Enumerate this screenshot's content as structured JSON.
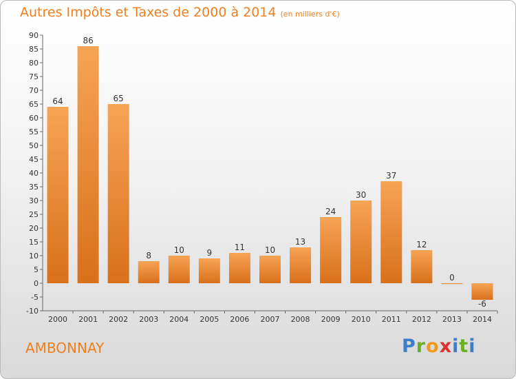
{
  "chart_data": {
    "type": "bar",
    "title": "Autres Impôts et Taxes de 2000 à 2014",
    "subtitle": "(en milliers d'€)",
    "categories": [
      "2000",
      "2001",
      "2002",
      "2003",
      "2004",
      "2005",
      "2006",
      "2007",
      "2008",
      "2009",
      "2010",
      "2011",
      "2012",
      "2013",
      "2014"
    ],
    "values": [
      64,
      86,
      65,
      8,
      10,
      9,
      11,
      10,
      13,
      24,
      30,
      37,
      12,
      0,
      -6
    ],
    "ylim": [
      -10,
      90
    ],
    "yticks": [
      -10,
      -5,
      0,
      5,
      10,
      15,
      20,
      25,
      30,
      35,
      40,
      45,
      50,
      55,
      60,
      65,
      70,
      75,
      80,
      85,
      90
    ],
    "grid": false,
    "bar_color": "#f39b45",
    "bar_color_dark": "#d9701a"
  },
  "commune": "AMBONNAY",
  "brand": {
    "name": "Proxiti",
    "letters": [
      "P",
      "r",
      "o",
      "x",
      "i",
      "t",
      "i"
    ]
  }
}
